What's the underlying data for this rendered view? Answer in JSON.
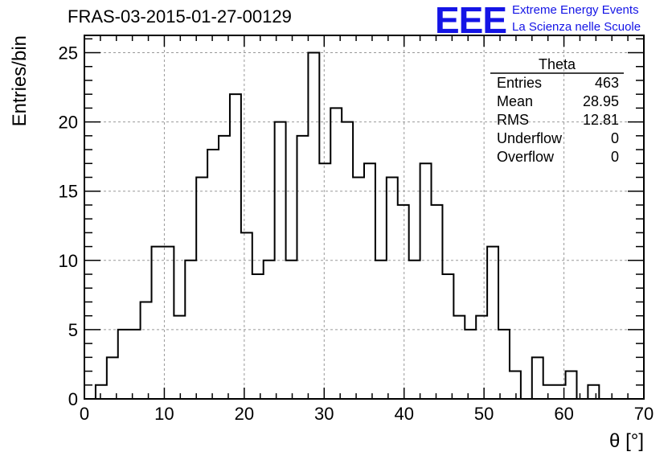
{
  "header": {
    "title": "FRAS-03-2015-01-27-00129",
    "logo_text": "EEE",
    "logo_line1": "Extreme Energy Events",
    "logo_line2": "La Scienza nelle Scuole"
  },
  "colors": {
    "logo": "#1414e6",
    "histogram": "#000000",
    "grid": "#999999"
  },
  "stats": {
    "name": "Theta",
    "rows": [
      {
        "label": "Entries",
        "value": "463"
      },
      {
        "label": "Mean",
        "value": "28.95"
      },
      {
        "label": "RMS",
        "value": "12.81"
      },
      {
        "label": "Underflow",
        "value": "0"
      },
      {
        "label": "Overflow",
        "value": "0"
      }
    ]
  },
  "chart_data": {
    "type": "histogram",
    "xlabel": "θ [°]",
    "ylabel": "Entries/bin",
    "xlim": [
      0,
      70
    ],
    "ylim": [
      0,
      26.25
    ],
    "grid": true,
    "x_ticks": [
      0,
      10,
      20,
      30,
      40,
      50,
      60,
      70
    ],
    "y_ticks": [
      0,
      5,
      10,
      15,
      20,
      25
    ],
    "bin_start": 1.4,
    "bin_width": 1.4,
    "values": [
      1,
      3,
      5,
      5,
      7,
      11,
      11,
      6,
      10,
      16,
      18,
      19,
      22,
      12,
      9,
      10,
      20,
      10,
      19,
      25,
      17,
      21,
      20,
      16,
      17,
      10,
      16,
      14,
      10,
      17,
      14,
      9,
      6,
      5,
      6,
      11,
      5,
      2,
      0,
      3,
      1,
      1,
      2,
      0,
      1,
      0
    ]
  }
}
